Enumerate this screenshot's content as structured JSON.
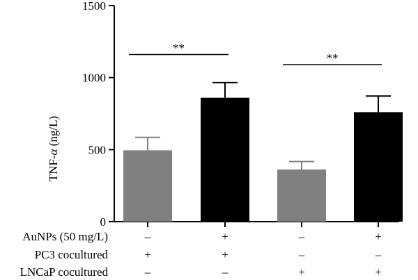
{
  "chart_data": {
    "type": "bar",
    "ylabel": "TNF-α (ng/L)",
    "ylabel_main": "TNF-",
    "ylabel_symbol": "α",
    "ylabel_unit": " (ng/L)",
    "ylim": [
      0,
      1500
    ],
    "yticks": [
      "0",
      "500",
      "1000",
      "1500"
    ],
    "grid": false,
    "values": [
      495,
      860,
      362,
      760
    ],
    "errors": [
      90,
      105,
      55,
      112
    ],
    "colors": [
      "#808080",
      "#000000",
      "#808080",
      "#000000"
    ],
    "significance": [
      {
        "from": 0,
        "to": 1,
        "label": "**",
        "y": 1160
      },
      {
        "from": 2,
        "to": 3,
        "label": "**",
        "y": 1090
      }
    ],
    "conditions": [
      {
        "label": "AuNPs (50 mg/L)",
        "values": [
          "–",
          "+",
          "–",
          "+"
        ]
      },
      {
        "label": "PC3 cocultured",
        "values": [
          "+",
          "+",
          "–",
          "–"
        ]
      },
      {
        "label": "LNCaP cocultured",
        "values": [
          "–",
          "–",
          "+",
          "+"
        ]
      }
    ]
  }
}
